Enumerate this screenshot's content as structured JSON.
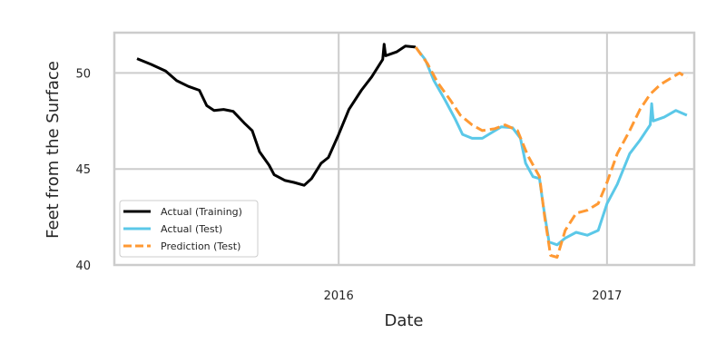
{
  "chart_data": {
    "type": "line",
    "title": "",
    "xlabel": "Date",
    "ylabel": "Feet from the Surface",
    "xlim": [
      "2015-03-01",
      "2017-04-30"
    ],
    "ylim": [
      40,
      52.1
    ],
    "x_ticks": [
      "2016-01-01",
      "2017-01-01"
    ],
    "x_tick_labels": [
      "2016",
      "2017"
    ],
    "y_ticks": [
      40,
      45,
      50
    ],
    "y_tick_labels": [
      "40",
      "45",
      "50"
    ],
    "grid": true,
    "legend_position": "lower-left",
    "series": [
      {
        "name": "Actual (Training)",
        "color": "#000000",
        "style": "solid",
        "points": [
          [
            "2015-04-01",
            50.75
          ],
          [
            "2015-04-20",
            50.45
          ],
          [
            "2015-05-10",
            50.1
          ],
          [
            "2015-05-25",
            49.6
          ],
          [
            "2015-06-10",
            49.3
          ],
          [
            "2015-06-25",
            49.1
          ],
          [
            "2015-07-05",
            48.3
          ],
          [
            "2015-07-15",
            48.05
          ],
          [
            "2015-07-28",
            48.1
          ],
          [
            "2015-08-10",
            48.0
          ],
          [
            "2015-08-25",
            47.4
          ],
          [
            "2015-09-05",
            47.0
          ],
          [
            "2015-09-15",
            45.9
          ],
          [
            "2015-09-28",
            45.2
          ],
          [
            "2015-10-05",
            44.7
          ],
          [
            "2015-10-20",
            44.4
          ],
          [
            "2015-11-01",
            44.3
          ],
          [
            "2015-11-15",
            44.15
          ],
          [
            "2015-11-25",
            44.5
          ],
          [
            "2015-12-08",
            45.3
          ],
          [
            "2015-12-18",
            45.6
          ],
          [
            "2016-01-01",
            46.8
          ],
          [
            "2016-01-15",
            48.1
          ],
          [
            "2016-02-01",
            49.1
          ],
          [
            "2016-02-15",
            49.8
          ],
          [
            "2016-03-01",
            50.7
          ],
          [
            "2016-03-03",
            51.5
          ],
          [
            "2016-03-05",
            50.9
          ],
          [
            "2016-03-20",
            51.1
          ],
          [
            "2016-04-01",
            51.4
          ],
          [
            "2016-04-15",
            51.35
          ]
        ]
      },
      {
        "name": "Actual (Test)",
        "color": "#5bc8e8",
        "style": "solid",
        "points": [
          [
            "2016-04-15",
            51.35
          ],
          [
            "2016-04-28",
            50.7
          ],
          [
            "2016-05-10",
            49.6
          ],
          [
            "2016-05-25",
            48.6
          ],
          [
            "2016-06-08",
            47.6
          ],
          [
            "2016-06-18",
            46.8
          ],
          [
            "2016-07-01",
            46.6
          ],
          [
            "2016-07-15",
            46.6
          ],
          [
            "2016-07-28",
            46.9
          ],
          [
            "2016-08-10",
            47.2
          ],
          [
            "2016-08-25",
            47.15
          ],
          [
            "2016-09-05",
            46.6
          ],
          [
            "2016-09-12",
            45.3
          ],
          [
            "2016-09-22",
            44.6
          ],
          [
            "2016-10-01",
            44.5
          ],
          [
            "2016-10-06",
            43.1
          ],
          [
            "2016-10-14",
            41.2
          ],
          [
            "2016-10-25",
            41.05
          ],
          [
            "2016-11-05",
            41.4
          ],
          [
            "2016-11-20",
            41.7
          ],
          [
            "2016-12-05",
            41.55
          ],
          [
            "2016-12-20",
            41.8
          ],
          [
            "2017-01-01",
            43.2
          ],
          [
            "2017-01-15",
            44.2
          ],
          [
            "2017-02-01",
            45.8
          ],
          [
            "2017-02-15",
            46.5
          ],
          [
            "2017-03-01",
            47.3
          ],
          [
            "2017-03-03",
            48.4
          ],
          [
            "2017-03-05",
            47.5
          ],
          [
            "2017-03-20",
            47.7
          ],
          [
            "2017-04-05",
            48.05
          ],
          [
            "2017-04-20",
            47.8
          ]
        ]
      },
      {
        "name": "Prediction (Test)",
        "color": "#ff9933",
        "style": "dashed",
        "points": [
          [
            "2016-04-15",
            51.35
          ],
          [
            "2016-05-01",
            50.5
          ],
          [
            "2016-05-15",
            49.5
          ],
          [
            "2016-06-01",
            48.6
          ],
          [
            "2016-06-15",
            47.8
          ],
          [
            "2016-07-01",
            47.3
          ],
          [
            "2016-07-15",
            47.0
          ],
          [
            "2016-08-01",
            47.1
          ],
          [
            "2016-08-15",
            47.3
          ],
          [
            "2016-09-01",
            47.0
          ],
          [
            "2016-09-15",
            45.7
          ],
          [
            "2016-10-01",
            44.6
          ],
          [
            "2016-10-08",
            42.5
          ],
          [
            "2016-10-16",
            40.5
          ],
          [
            "2016-10-25",
            40.4
          ],
          [
            "2016-11-05",
            41.8
          ],
          [
            "2016-11-20",
            42.7
          ],
          [
            "2016-12-05",
            42.85
          ],
          [
            "2016-12-20",
            43.2
          ],
          [
            "2017-01-01",
            44.3
          ],
          [
            "2017-01-15",
            45.8
          ],
          [
            "2017-02-01",
            47.0
          ],
          [
            "2017-02-15",
            48.1
          ],
          [
            "2017-03-01",
            48.9
          ],
          [
            "2017-03-15",
            49.4
          ],
          [
            "2017-04-01",
            49.8
          ],
          [
            "2017-04-10",
            50.0
          ],
          [
            "2017-04-20",
            49.75
          ]
        ]
      }
    ]
  }
}
